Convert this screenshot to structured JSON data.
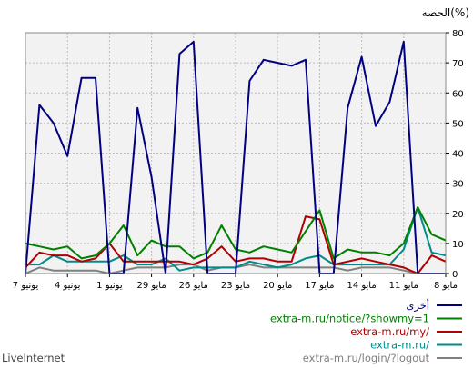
{
  "chart_data": {
    "type": "line",
    "ylabel": "الحصه(%)",
    "ylim": [
      0,
      80
    ],
    "yticks": [
      0,
      10,
      20,
      30,
      40,
      50,
      60,
      70,
      80
    ],
    "grid": true,
    "x_direction": "right-to-left",
    "x_tick_labels": [
      "8 مايو",
      "11 مايو",
      "14 مايو",
      "17 مايو",
      "20 مايو",
      "23 مايو",
      "26 مايو",
      "29 مايو",
      "1 يونيو",
      "4 يونيو",
      "7 يونيو"
    ],
    "legend_position": "bottom-right",
    "series": [
      {
        "name": "أخرى",
        "color": "#000080",
        "values": [
          0,
          0,
          0,
          77,
          57,
          49,
          72,
          55,
          0,
          0,
          71,
          69,
          70,
          71,
          64,
          0,
          0,
          0,
          77,
          73,
          0,
          32,
          55,
          0,
          0,
          65,
          65,
          39,
          50,
          56,
          0
        ]
      },
      {
        "name": "extra-m.ru/notice/?showmy=1",
        "color": "#008000",
        "values": [
          11,
          13,
          22,
          10,
          6,
          7,
          7,
          8,
          5,
          21,
          14,
          7,
          8,
          9,
          7,
          8,
          16,
          7,
          5,
          9,
          9,
          11,
          6,
          16,
          10,
          6,
          5,
          9,
          8,
          9,
          10
        ]
      },
      {
        "name": "extra-m.ru/my/",
        "color": "#b00000",
        "values": [
          4,
          6,
          0,
          2,
          3,
          4,
          5,
          4,
          3,
          18,
          19,
          4,
          4,
          5,
          5,
          4,
          9,
          5,
          3,
          4,
          4,
          4,
          4,
          4,
          10,
          5,
          4,
          6,
          6,
          7,
          2
        ]
      },
      {
        "name": "extra-m.ru/",
        "color": "#008b8b",
        "values": [
          6,
          7,
          22,
          8,
          3,
          3,
          3,
          3,
          3,
          6,
          5,
          3,
          2,
          3,
          4,
          2,
          2,
          2,
          2,
          1,
          5,
          3,
          3,
          6,
          4,
          4,
          4,
          4,
          6,
          3,
          3
        ]
      },
      {
        "name": "extra-m.ru/login/?logout",
        "color": "#808080",
        "values": [
          0,
          0,
          0,
          1,
          2,
          2,
          2,
          1,
          2,
          2,
          2,
          2,
          2,
          2,
          3,
          2,
          2,
          1,
          3,
          3,
          2,
          2,
          2,
          1,
          0,
          1,
          1,
          1,
          1,
          2,
          0
        ]
      }
    ]
  },
  "footer": {
    "brand": "LiveInternet"
  }
}
